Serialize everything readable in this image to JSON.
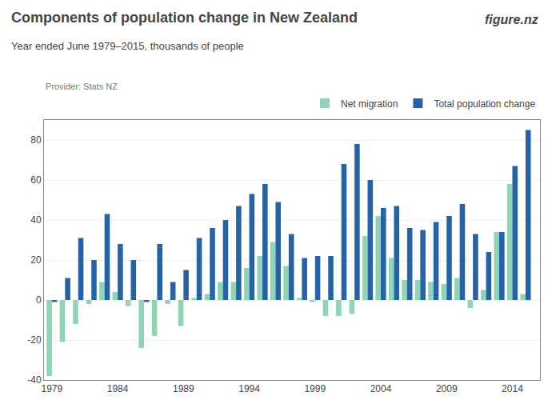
{
  "chart_data": {
    "type": "bar",
    "title": "Components of population change in New Zealand",
    "subtitle": "Year ended June 1979–2015, thousands of people",
    "annotations": [
      "Provider: Stats NZ",
      "figure.nz"
    ],
    "x": [
      1979,
      1980,
      1981,
      1982,
      1983,
      1984,
      1985,
      1986,
      1987,
      1988,
      1989,
      1990,
      1991,
      1992,
      1993,
      1994,
      1995,
      1996,
      1997,
      1998,
      1999,
      2000,
      2001,
      2002,
      2003,
      2004,
      2005,
      2006,
      2007,
      2008,
      2009,
      2010,
      2011,
      2012,
      2013,
      2014,
      2015
    ],
    "series": [
      {
        "name": "Net migration",
        "color": "#8fd4b5",
        "values": [
          -38,
          -21,
          -12,
          -2,
          9,
          4,
          -3,
          -24,
          -18,
          -2,
          -13,
          1,
          3,
          9,
          9,
          16,
          22,
          29,
          17,
          1,
          -1,
          -8,
          -8,
          -7,
          32,
          42,
          21,
          10,
          10,
          9,
          8,
          11,
          -4,
          5,
          34,
          58,
          3
        ]
      },
      {
        "name": "Total population change",
        "color": "#2563a8",
        "values": [
          -1,
          11,
          31,
          20,
          43,
          28,
          20,
          -1,
          28,
          9,
          15,
          31,
          36,
          40,
          47,
          53,
          58,
          49,
          33,
          21,
          22,
          22,
          68,
          78,
          60,
          46,
          47,
          36,
          35,
          39,
          42,
          48,
          33,
          24,
          34,
          67,
          85
        ]
      }
    ],
    "xlim": [
      1978.4,
      2016.1
    ],
    "xticks": [
      1979,
      1984,
      1989,
      1994,
      1999,
      2004,
      2009,
      2014
    ],
    "ylim": [
      -40,
      90
    ],
    "yticks": [
      -40,
      -20,
      0,
      20,
      40,
      60,
      80
    ],
    "grid": "y",
    "legend": "upper right"
  }
}
